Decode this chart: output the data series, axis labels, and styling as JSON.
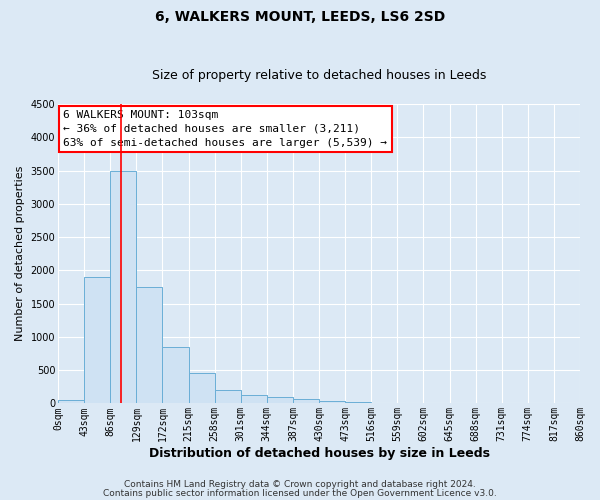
{
  "title": "6, WALKERS MOUNT, LEEDS, LS6 2SD",
  "subtitle": "Size of property relative to detached houses in Leeds",
  "xlabel": "Distribution of detached houses by size in Leeds",
  "ylabel": "Number of detached properties",
  "bin_edges": [
    0,
    43,
    86,
    129,
    172,
    215,
    258,
    301,
    344,
    387,
    430,
    473,
    516,
    559,
    602,
    645,
    688,
    731,
    774,
    817,
    860
  ],
  "bin_labels": [
    "0sqm",
    "43sqm",
    "86sqm",
    "129sqm",
    "172sqm",
    "215sqm",
    "258sqm",
    "301sqm",
    "344sqm",
    "387sqm",
    "430sqm",
    "473sqm",
    "516sqm",
    "559sqm",
    "602sqm",
    "645sqm",
    "688sqm",
    "731sqm",
    "774sqm",
    "817sqm",
    "860sqm"
  ],
  "bar_heights": [
    50,
    1900,
    3500,
    1750,
    850,
    450,
    200,
    130,
    100,
    60,
    40,
    20,
    10,
    5,
    3,
    2,
    1,
    1,
    0,
    0
  ],
  "bar_color": "#cfe2f3",
  "bar_edge_color": "#6aaed6",
  "red_line_x": 103,
  "ylim": [
    0,
    4500
  ],
  "yticks": [
    0,
    500,
    1000,
    1500,
    2000,
    2500,
    3000,
    3500,
    4000,
    4500
  ],
  "annotation_title": "6 WALKERS MOUNT: 103sqm",
  "annotation_line1": "← 36% of detached houses are smaller (3,211)",
  "annotation_line2": "63% of semi-detached houses are larger (5,539) →",
  "footnote1": "Contains HM Land Registry data © Crown copyright and database right 2024.",
  "footnote2": "Contains public sector information licensed under the Open Government Licence v3.0.",
  "bg_color": "#dce9f5",
  "plot_bg_color": "#dce9f5",
  "grid_color": "#ffffff",
  "title_fontsize": 10,
  "subtitle_fontsize": 9,
  "xlabel_fontsize": 9,
  "ylabel_fontsize": 8,
  "tick_fontsize": 7,
  "annotation_fontsize": 8,
  "footnote_fontsize": 6.5
}
